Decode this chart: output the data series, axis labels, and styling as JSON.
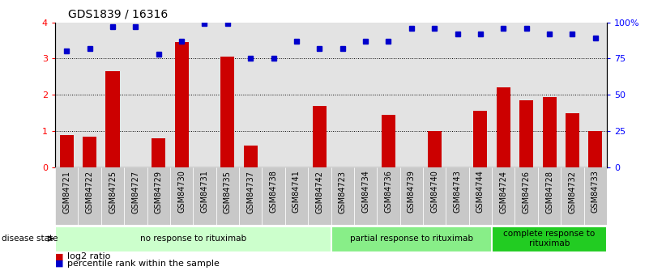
{
  "title": "GDS1839 / 16316",
  "samples": [
    "GSM84721",
    "GSM84722",
    "GSM84725",
    "GSM84727",
    "GSM84729",
    "GSM84730",
    "GSM84731",
    "GSM84735",
    "GSM84737",
    "GSM84738",
    "GSM84741",
    "GSM84742",
    "GSM84723",
    "GSM84734",
    "GSM84736",
    "GSM84739",
    "GSM84740",
    "GSM84743",
    "GSM84744",
    "GSM84724",
    "GSM84726",
    "GSM84728",
    "GSM84732",
    "GSM84733"
  ],
  "log2_ratio": [
    0.9,
    0.85,
    2.65,
    0.0,
    0.8,
    3.45,
    0.0,
    3.05,
    0.6,
    0.0,
    0.0,
    1.7,
    0.0,
    0.0,
    1.45,
    0.0,
    1.0,
    0.0,
    1.55,
    2.2,
    1.85,
    1.95,
    1.5,
    1.0
  ],
  "percentile_pct": [
    80,
    82,
    97,
    97,
    78,
    87,
    99,
    99,
    75,
    75,
    87,
    82,
    82,
    87,
    87,
    96,
    96,
    92,
    92,
    96,
    96,
    92,
    92,
    89
  ],
  "bar_color": "#cc0000",
  "dot_color": "#0000cc",
  "ylim_left": [
    0,
    4
  ],
  "ylim_right": [
    0,
    100
  ],
  "yticks_left": [
    0,
    1,
    2,
    3,
    4
  ],
  "ytick_labels_left": [
    "0",
    "1",
    "2",
    "3",
    "4"
  ],
  "yticks_right": [
    0,
    25,
    50,
    75,
    100
  ],
  "ytick_labels_right": [
    "0",
    "25",
    "50",
    "75",
    "100%"
  ],
  "groups": [
    {
      "label": "no response to rituximab",
      "start": 0,
      "end": 12,
      "color": "#ccffcc"
    },
    {
      "label": "partial response to rituximab",
      "start": 12,
      "end": 19,
      "color": "#88ee88"
    },
    {
      "label": "complete response to\nrituximab",
      "start": 19,
      "end": 24,
      "color": "#22cc22"
    }
  ],
  "disease_state_label": "disease state",
  "legend_items": [
    {
      "label": "log2 ratio",
      "color": "#cc0000"
    },
    {
      "label": "percentile rank within the sample",
      "color": "#0000cc"
    }
  ],
  "bg_color": "#ffffff",
  "tick_label_fontsize": 7,
  "title_fontsize": 10,
  "cell_bg_color": "#c8c8c8"
}
